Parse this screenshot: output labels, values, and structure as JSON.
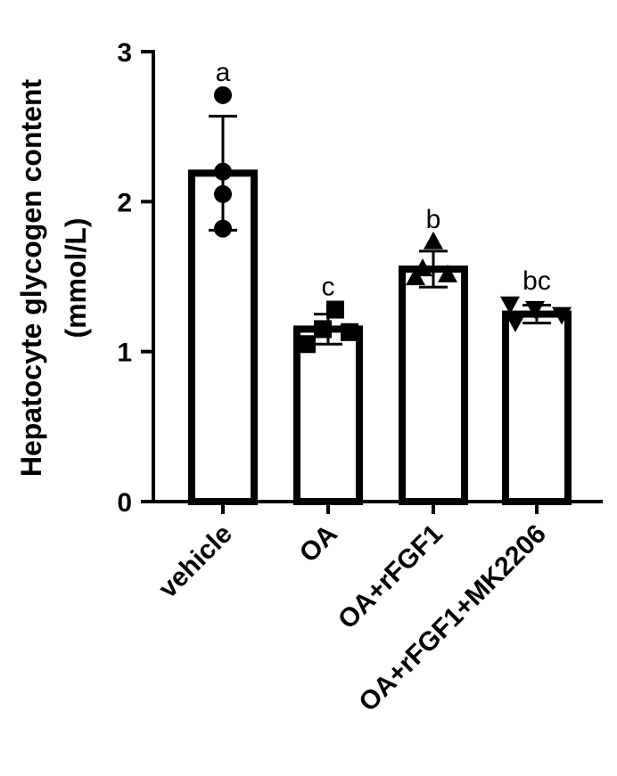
{
  "chart_data": {
    "type": "bar",
    "ylabel_line1": "Hepatocyte glycogen content",
    "ylabel_line2": "(mmol/L)",
    "ylim": [
      0,
      3
    ],
    "yticks": [
      "0",
      "1",
      "2",
      "3"
    ],
    "categories": [
      "vehicle",
      "OA",
      "OA+rFGF1",
      "OA+rFGF1+MK2206"
    ],
    "values": [
      2.19,
      1.15,
      1.55,
      1.25
    ],
    "errors": [
      0.38,
      0.1,
      0.12,
      0.06
    ],
    "significance": [
      "a",
      "c",
      "b",
      "bc"
    ],
    "marker_shapes": [
      "circle",
      "square",
      "triangle-up",
      "triangle-down"
    ],
    "points": [
      [
        2.71,
        2.2,
        2.05,
        1.82
      ],
      [
        1.28,
        1.15,
        1.13,
        1.05
      ],
      [
        1.73,
        1.55,
        1.51,
        1.49
      ],
      [
        1.32,
        1.29,
        1.25,
        1.2
      ]
    ],
    "bar_fill": "#ffffff",
    "bar_stroke": "#000000"
  }
}
